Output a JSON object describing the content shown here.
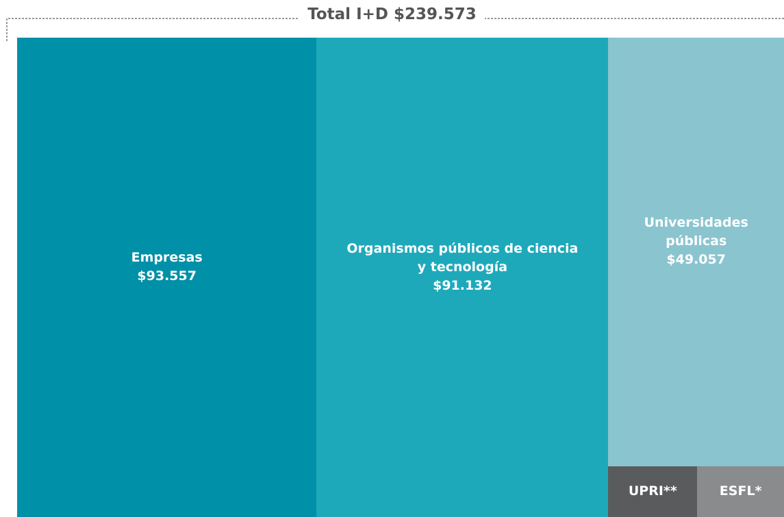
{
  "chart_data": {
    "type": "treemap",
    "title": "Total I+D $239.573",
    "categories": [
      "Empresas",
      "Organismos públicos de ciencia y tecnología",
      "Universidades públicas",
      "UPRI**",
      "ESFL*"
    ],
    "values": [
      93557,
      91132,
      49057,
      2950,
      2877
    ],
    "value_labels": [
      "$93.557",
      "$91.132",
      "$49.057",
      null,
      null
    ],
    "colors": [
      "#0090a8",
      "#1ea9bb",
      "#8ac4cf",
      "#5a5b5d",
      "#8a8b8d"
    ]
  }
}
